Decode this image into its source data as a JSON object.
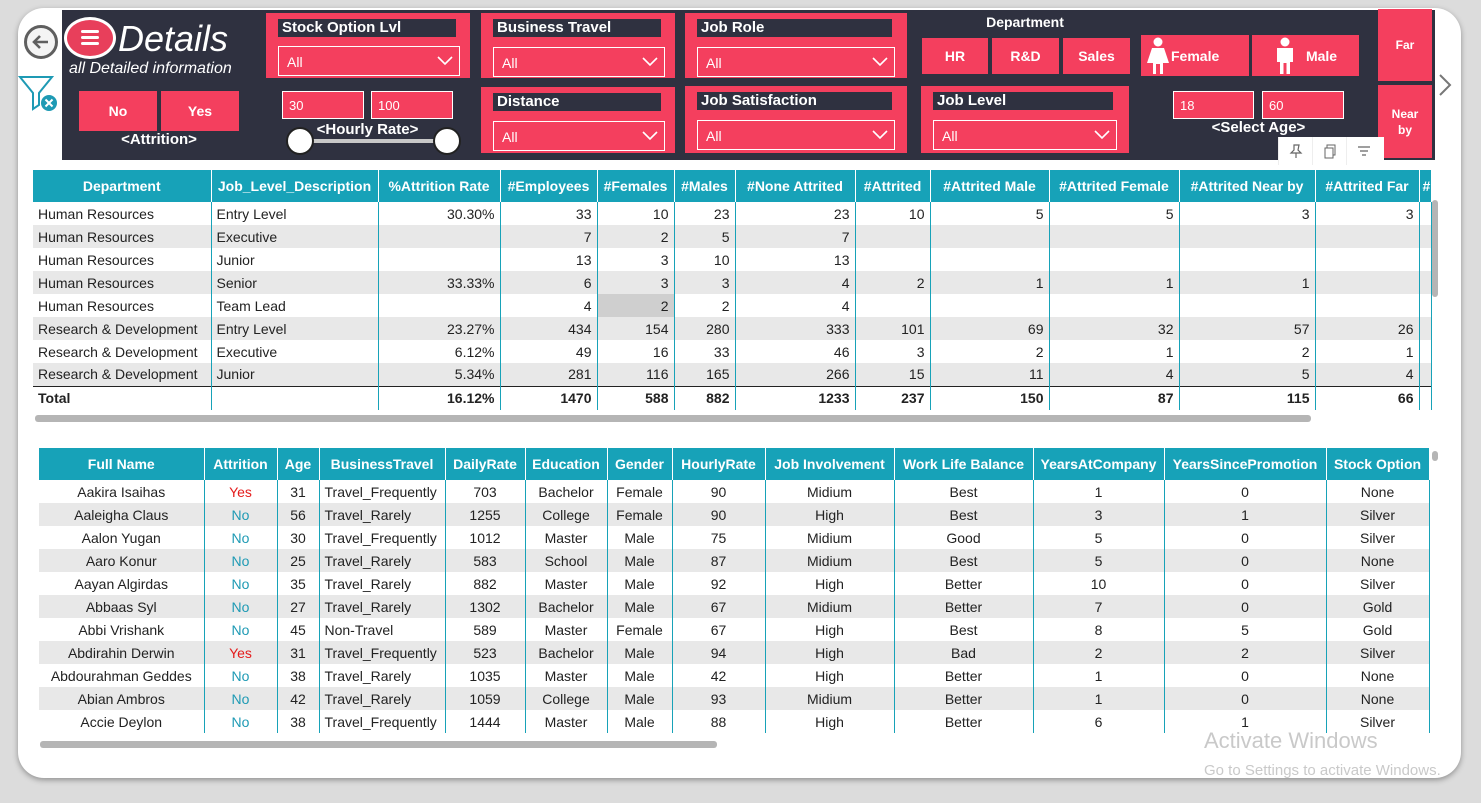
{
  "header": {
    "title": "Details",
    "subtitle": "all Detailed information"
  },
  "filters": {
    "stock_option": {
      "label": "Stock Option Lvl",
      "value": "All"
    },
    "business_travel": {
      "label": "Business Travel",
      "value": "All"
    },
    "job_role": {
      "label": "Job Role",
      "value": "All"
    },
    "distance": {
      "label": "Distance",
      "value": "All"
    },
    "job_satisfaction": {
      "label": "Job Satisfaction",
      "value": "All"
    },
    "job_level": {
      "label": "Job Level",
      "value": "All"
    },
    "attrition": {
      "label": "<Attrition>",
      "no": "No",
      "yes": "Yes"
    },
    "hourly_rate": {
      "label": "<Hourly Rate>",
      "min": "30",
      "max": "100"
    },
    "department": {
      "label": "Department",
      "hr": "HR",
      "rd": "R&D",
      "sales": "Sales"
    },
    "gender": {
      "female": "Female",
      "male": "Male"
    },
    "age": {
      "label": "<Select Age>",
      "min": "18",
      "max": "60"
    },
    "distance_buttons": {
      "far": "Far",
      "near": "Near by"
    }
  },
  "summary_table": {
    "columns": [
      "Department",
      "Job_Level_Description",
      "%Attrition Rate",
      "#Employees",
      "#Females",
      "#Males",
      "#None Attrited",
      "#Attrited",
      "#Attrited Male",
      "#Attrited Female",
      "#Attrited Near by",
      "#Attrited Far",
      "#"
    ],
    "rows": [
      [
        "Human Resources",
        "Entry Level",
        "30.30%",
        "33",
        "10",
        "23",
        "23",
        "10",
        "5",
        "5",
        "3",
        "3",
        ""
      ],
      [
        "Human Resources",
        "Executive",
        "",
        "7",
        "2",
        "5",
        "7",
        "",
        "",
        "",
        "",
        "",
        ""
      ],
      [
        "Human Resources",
        "Junior",
        "",
        "13",
        "3",
        "10",
        "13",
        "",
        "",
        "",
        "",
        "",
        ""
      ],
      [
        "Human Resources",
        "Senior",
        "33.33%",
        "6",
        "3",
        "3",
        "4",
        "2",
        "1",
        "1",
        "1",
        "",
        ""
      ],
      [
        "Human Resources",
        "Team Lead",
        "",
        "4",
        "2",
        "2",
        "4",
        "",
        "",
        "",
        "",
        "",
        ""
      ],
      [
        "Research & Development",
        "Entry Level",
        "23.27%",
        "434",
        "154",
        "280",
        "333",
        "101",
        "69",
        "32",
        "57",
        "26",
        ""
      ],
      [
        "Research & Development",
        "Executive",
        "6.12%",
        "49",
        "16",
        "33",
        "46",
        "3",
        "2",
        "1",
        "2",
        "1",
        ""
      ],
      [
        "Research & Development",
        "Junior",
        "5.34%",
        "281",
        "116",
        "165",
        "266",
        "15",
        "11",
        "4",
        "5",
        "4",
        ""
      ]
    ],
    "total": [
      "Total",
      "",
      "16.12%",
      "1470",
      "588",
      "882",
      "1233",
      "237",
      "150",
      "87",
      "115",
      "66",
      ""
    ]
  },
  "employee_table": {
    "columns": [
      "Full Name",
      "Attrition",
      "Age",
      "BusinessTravel",
      "DailyRate",
      "Education",
      "Gender",
      "HourlyRate",
      "Job Involvement",
      "Work Life Balance",
      "YearsAtCompany",
      "YearsSincePromotion",
      "Stock Option"
    ],
    "rows": [
      [
        "Aakira Isaihas",
        "Yes",
        "31",
        "Travel_Frequently",
        "703",
        "Bachelor",
        "Female",
        "90",
        "Midium",
        "Best",
        "1",
        "0",
        "None"
      ],
      [
        "Aaleigha Claus",
        "No",
        "56",
        "Travel_Rarely",
        "1255",
        "College",
        "Female",
        "90",
        "High",
        "Best",
        "3",
        "1",
        "Silver"
      ],
      [
        "Aalon Yugan",
        "No",
        "30",
        "Travel_Frequently",
        "1012",
        "Master",
        "Male",
        "75",
        "Midium",
        "Good",
        "5",
        "0",
        "Silver"
      ],
      [
        "Aaro Konur",
        "No",
        "25",
        "Travel_Rarely",
        "583",
        "School",
        "Male",
        "87",
        "Midium",
        "Best",
        "5",
        "0",
        "None"
      ],
      [
        "Aayan Algirdas",
        "No",
        "35",
        "Travel_Rarely",
        "882",
        "Master",
        "Male",
        "92",
        "High",
        "Better",
        "10",
        "0",
        "Silver"
      ],
      [
        "Abbaas Syl",
        "No",
        "27",
        "Travel_Rarely",
        "1302",
        "Bachelor",
        "Male",
        "67",
        "Midium",
        "Better",
        "7",
        "0",
        "Gold"
      ],
      [
        "Abbi Vrishank",
        "No",
        "45",
        "Non-Travel",
        "589",
        "Master",
        "Female",
        "67",
        "High",
        "Best",
        "8",
        "5",
        "Gold"
      ],
      [
        "Abdirahin Derwin",
        "Yes",
        "31",
        "Travel_Frequently",
        "523",
        "Bachelor",
        "Male",
        "94",
        "High",
        "Bad",
        "2",
        "2",
        "Silver"
      ],
      [
        "Abdourahman Geddes",
        "No",
        "38",
        "Travel_Rarely",
        "1035",
        "Master",
        "Male",
        "42",
        "High",
        "Better",
        "1",
        "0",
        "None"
      ],
      [
        "Abian Ambros",
        "No",
        "42",
        "Travel_Rarely",
        "1059",
        "College",
        "Male",
        "93",
        "Midium",
        "Better",
        "1",
        "0",
        "None"
      ],
      [
        "Accie Deylon",
        "No",
        "38",
        "Travel_Frequently",
        "1444",
        "Master",
        "Male",
        "88",
        "High",
        "Better",
        "6",
        "1",
        "Silver"
      ]
    ]
  },
  "watermark": {
    "line1": "Activate Windows",
    "line2": "Go to Settings to activate Windows."
  },
  "colors": {
    "accent": "#f43f5e",
    "header_bg": "#2f3140",
    "table_header": "#17a2b8",
    "attrition_yes": "#e41c1c",
    "attrition_no": "#1e9ab4"
  }
}
